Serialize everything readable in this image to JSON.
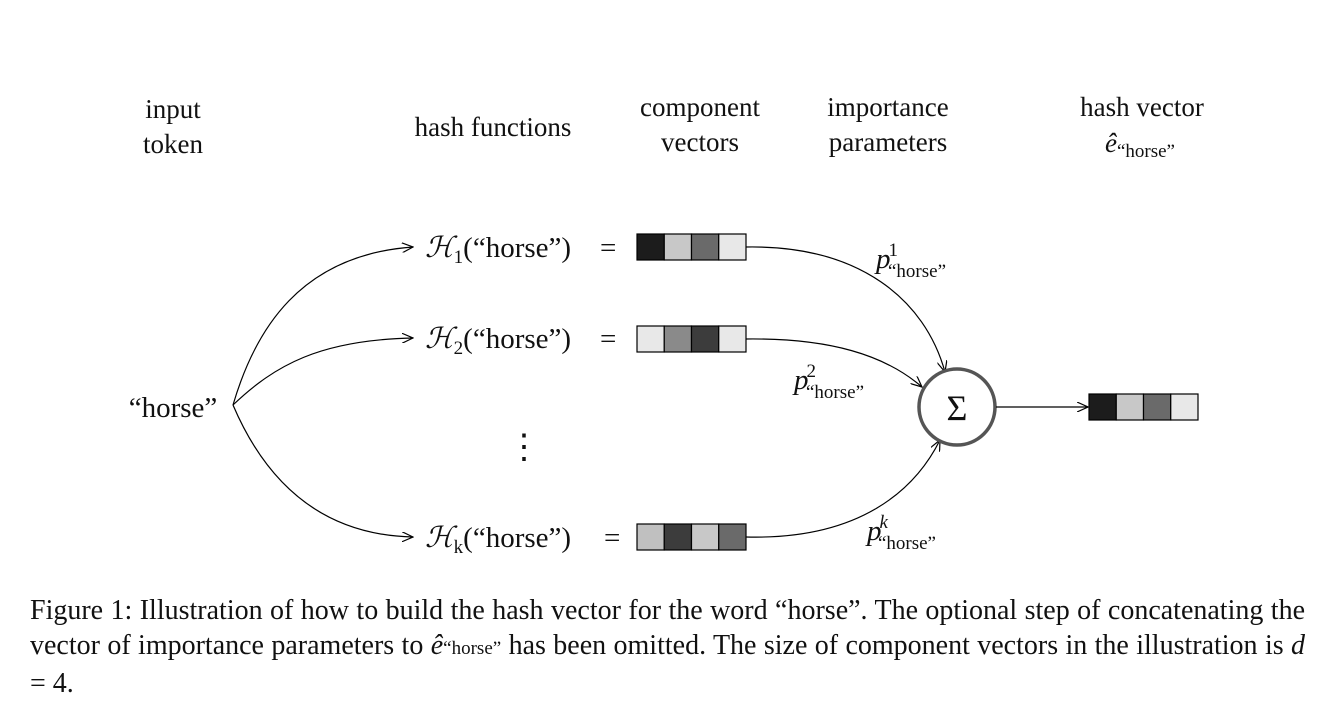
{
  "headers": {
    "input": [
      "input",
      "token"
    ],
    "hash_functions": "hash functions",
    "component": [
      "component",
      "vectors"
    ],
    "importance": [
      "importance",
      "parameters"
    ],
    "hash_vector": "hash vector",
    "hash_vector_symbol": "ê",
    "hash_vector_sub": "“horse”"
  },
  "token": "“horse”",
  "hash_rows": [
    {
      "fn": "ℋ",
      "sub": "1",
      "arg": "(“horse”)",
      "eq": "=",
      "cells": [
        "#1c1c1c",
        "#c8c8c8",
        "#6a6a6a",
        "#e8e8e8"
      ]
    },
    {
      "fn": "ℋ",
      "sub": "2",
      "arg": "(“horse”)",
      "eq": "=",
      "cells": [
        "#e8e8e8",
        "#8a8a8a",
        "#3c3c3c",
        "#e8e8e8"
      ]
    },
    {
      "fn": "ℋ",
      "sub": "k",
      "arg": "(“horse”)",
      "eq": "=",
      "cells": [
        "#c0c0c0",
        "#3c3c3c",
        "#c8c8c8",
        "#6a6a6a"
      ]
    }
  ],
  "ellipsis": "⋮",
  "params": [
    {
      "sym": "p",
      "sup": "1",
      "sub": "“horse”"
    },
    {
      "sym": "p",
      "sup": "2",
      "sub": "“horse”"
    },
    {
      "sym": "p",
      "sup": "k",
      "sub": "“horse”"
    }
  ],
  "sum_symbol": "Σ",
  "sum_color": "#555555",
  "output_cells": [
    "#1c1c1c",
    "#c8c8c8",
    "#6a6a6a",
    "#e8e8e8"
  ],
  "caption": {
    "p1": "Figure 1: Illustration of how to build the hash vector for the word “horse”. The optional step of concatenating the vector of importance parameters to ",
    "sym": "ê",
    "sub": "“horse”",
    "p2": " has been omitted. The size of component vectors in the illustration is ",
    "var": "d",
    "p3": " = 4."
  }
}
